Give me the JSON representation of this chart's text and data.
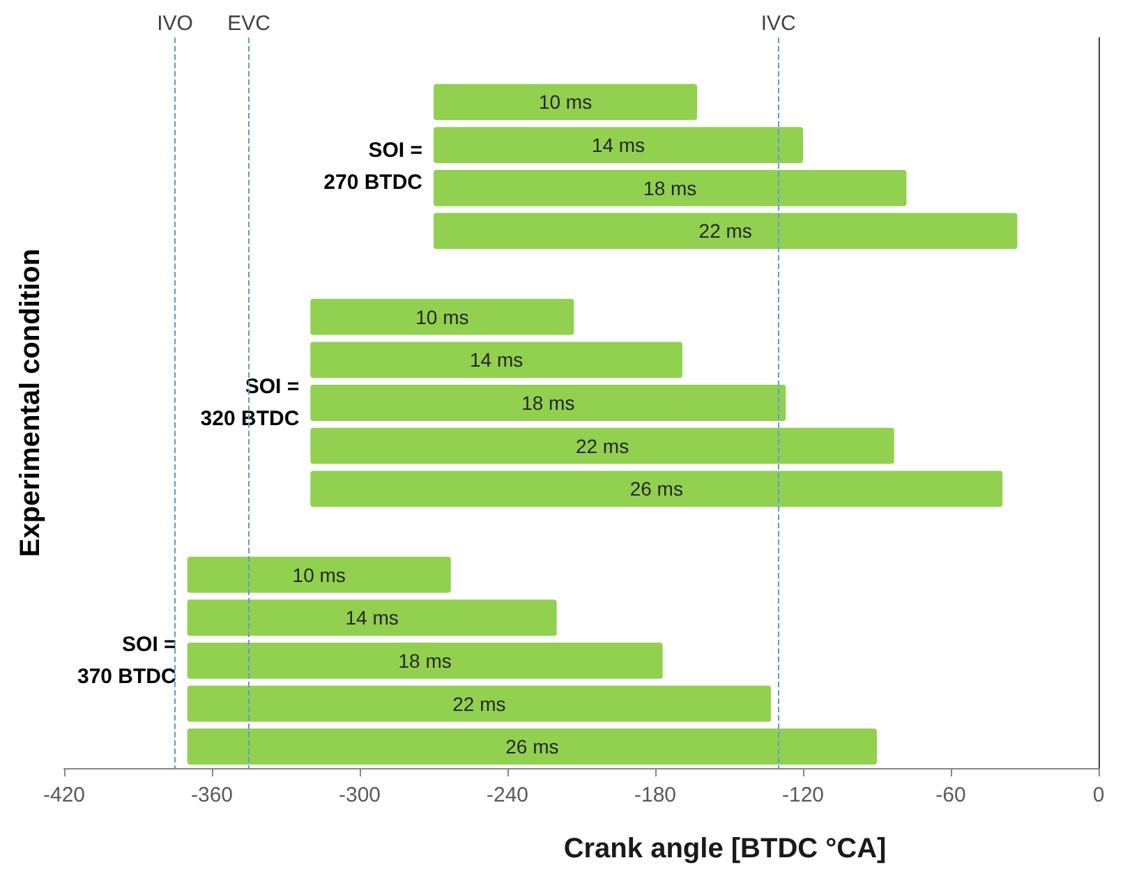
{
  "chart_data": {
    "type": "bar",
    "orientation": "horizontal",
    "xlabel": "Crank angle [BTDC °CA]",
    "ylabel": "Experimental condition",
    "categories": [
      null,
      null,
      null,
      null,
      null,
      null,
      null,
      null,
      null,
      null,
      null,
      null,
      null,
      null,
      null,
      null,
      null
    ],
    "series": [
      {
        "name": "10 ms",
        "color": "#92d050",
        "values": [
          null,
          107,
          null,
          null,
          null,
          null,
          107,
          null,
          null,
          null,
          null,
          null,
          107,
          null,
          null,
          null,
          null
        ],
        "base": [
          null,
          -270,
          null,
          null,
          null,
          null,
          -320,
          null,
          null,
          null,
          null,
          null,
          -370,
          null,
          null,
          null,
          null
        ]
      },
      {
        "name": "14 ms",
        "color": "#92d050",
        "values": [
          null,
          null,
          150,
          null,
          null,
          null,
          null,
          151,
          null,
          null,
          null,
          null,
          null,
          150,
          null,
          null,
          null
        ],
        "base": [
          null,
          null,
          -270,
          null,
          null,
          null,
          null,
          -320,
          null,
          null,
          null,
          null,
          null,
          -370,
          null,
          null,
          null
        ]
      },
      {
        "name": "18 ms",
        "color": "#92d050",
        "values": [
          null,
          null,
          null,
          192,
          null,
          null,
          null,
          null,
          193,
          null,
          null,
          null,
          null,
          null,
          193,
          null,
          null
        ],
        "base": [
          null,
          null,
          null,
          -270,
          null,
          null,
          null,
          null,
          -320,
          null,
          null,
          null,
          null,
          null,
          -370,
          null,
          null
        ]
      },
      {
        "name": "22 ms",
        "color": "#92d050",
        "values": [
          null,
          null,
          null,
          null,
          237,
          null,
          null,
          null,
          null,
          237,
          null,
          null,
          null,
          null,
          null,
          237,
          null
        ],
        "base": [
          null,
          null,
          null,
          null,
          -270,
          null,
          null,
          null,
          null,
          -320,
          null,
          null,
          null,
          null,
          null,
          -370,
          null
        ]
      },
      {
        "name": "26 ms",
        "color": "#92d050",
        "values": [
          null,
          null,
          null,
          null,
          null,
          null,
          null,
          null,
          null,
          null,
          281,
          null,
          null,
          null,
          null,
          null,
          280
        ],
        "base": [
          null,
          null,
          null,
          null,
          null,
          null,
          null,
          null,
          null,
          null,
          -320,
          null,
          null,
          null,
          null,
          null,
          -370
        ]
      }
    ],
    "xlim": [
      -420,
      0
    ],
    "xticks": [
      -420,
      -360,
      -300,
      -240,
      -180,
      -120,
      -60,
      0
    ],
    "ref_lines": [
      {
        "axis": "x",
        "value": -375,
        "label": "IVO",
        "color": "#5b9bd5",
        "line_style": "dashed"
      },
      {
        "axis": "x",
        "value": -345,
        "label": "EVC",
        "color": "#5b9bd5",
        "line_style": "dashed"
      },
      {
        "axis": "x",
        "value": -130,
        "label": "IVC",
        "color": "#5b9bd5",
        "line_style": "dashed"
      }
    ],
    "annotations": [
      "SOI =\n270 BTDC",
      "SOI =\n320 BTDC",
      "SOI =\n370 BTDC"
    ],
    "tick_labels": "x"
  }
}
